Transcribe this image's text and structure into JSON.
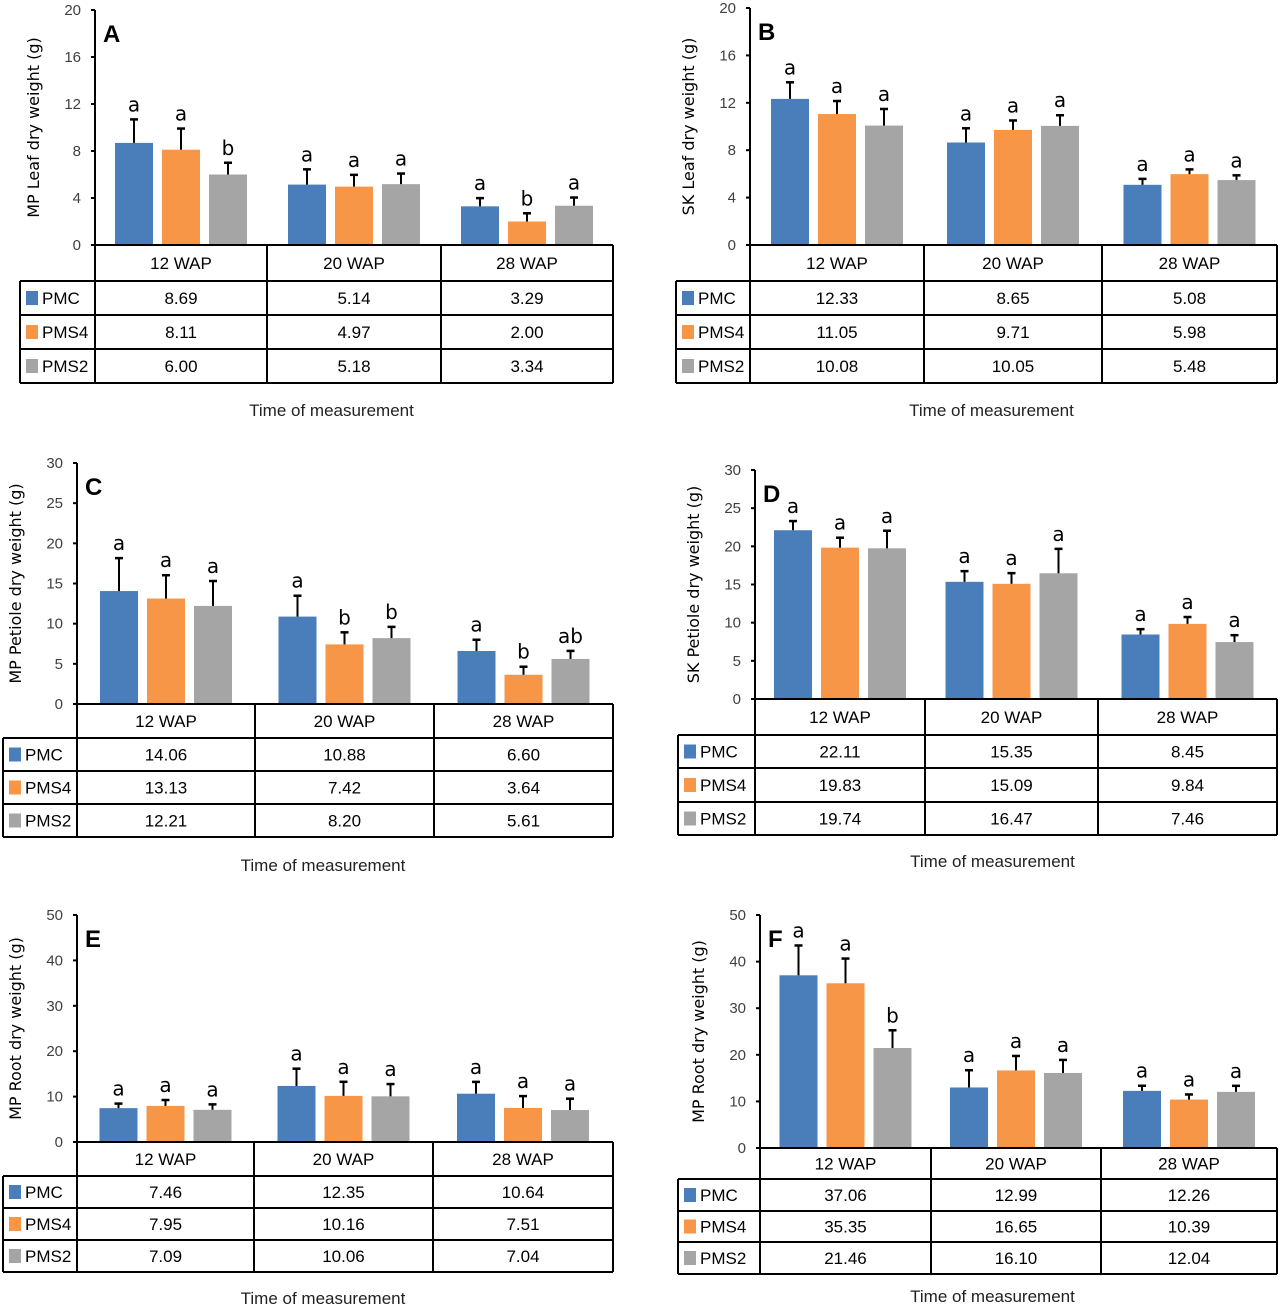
{
  "figure": {
    "xlabel": "Time of measurement",
    "colors": {
      "PMC": "#4a7ebb",
      "PMS4": "#f79646",
      "PMS2": "#a5a5a5"
    }
  },
  "chart_data": [
    {
      "panel": "A",
      "type": "bar",
      "ylabel": "MP Leaf dry weight (g)",
      "xlabel": "Time of measurement",
      "categories": [
        "12 WAP",
        "20 WAP",
        "28 WAP"
      ],
      "ylim": [
        0,
        20
      ],
      "yticks": [
        0,
        4,
        8,
        12,
        16,
        20
      ],
      "series": [
        {
          "name": "PMC",
          "values": [
            8.69,
            5.14,
            3.29
          ],
          "labels": [
            "8.69",
            "5.14",
            "3.29"
          ],
          "errors": [
            2.0,
            1.3,
            0.7
          ],
          "letters": [
            "a",
            "a",
            "a"
          ]
        },
        {
          "name": "PMS4",
          "values": [
            8.11,
            4.97,
            2.0
          ],
          "labels": [
            "8.11",
            "4.97",
            "2.00"
          ],
          "errors": [
            1.8,
            1.0,
            0.7
          ],
          "letters": [
            "a",
            "a",
            "b"
          ]
        },
        {
          "name": "PMS2",
          "values": [
            6.0,
            5.18,
            3.34
          ],
          "labels": [
            "6.00",
            "5.18",
            "3.34"
          ],
          "errors": [
            1.0,
            0.9,
            0.7
          ],
          "letters": [
            "b",
            "a",
            "a"
          ]
        }
      ]
    },
    {
      "panel": "B",
      "type": "bar",
      "ylabel": "SK Leaf dry weight (g)",
      "xlabel": "Time of measurement",
      "categories": [
        "12 WAP",
        "20 WAP",
        "28 WAP"
      ],
      "ylim": [
        0,
        20
      ],
      "yticks": [
        0,
        4,
        8,
        12,
        16,
        20
      ],
      "series": [
        {
          "name": "PMC",
          "values": [
            12.33,
            8.65,
            5.08
          ],
          "labels": [
            "12.33",
            "8.65",
            "5.08"
          ],
          "errors": [
            1.4,
            1.2,
            0.5
          ],
          "letters": [
            "a",
            "a",
            "a"
          ]
        },
        {
          "name": "PMS4",
          "values": [
            11.05,
            9.71,
            5.98
          ],
          "labels": [
            "11.05",
            "9.71",
            "5.98"
          ],
          "errors": [
            1.1,
            0.8,
            0.4
          ],
          "letters": [
            "a",
            "a",
            "a"
          ]
        },
        {
          "name": "PMS2",
          "values": [
            10.08,
            10.05,
            5.48
          ],
          "labels": [
            "10.08",
            "10.05",
            "5.48"
          ],
          "errors": [
            1.4,
            0.9,
            0.4
          ],
          "letters": [
            "a",
            "a",
            "a"
          ]
        }
      ]
    },
    {
      "panel": "C",
      "type": "bar",
      "ylabel": "MP Petiole dry weight (g)",
      "xlabel": "Time of measurement",
      "categories": [
        "12 WAP",
        "20 WAP",
        "28 WAP"
      ],
      "ylim": [
        0,
        30
      ],
      "yticks": [
        0,
        5,
        10,
        15,
        20,
        25,
        30
      ],
      "series": [
        {
          "name": "PMC",
          "values": [
            14.06,
            10.88,
            6.6
          ],
          "labels": [
            "14.06",
            "10.88",
            "6.60"
          ],
          "errors": [
            4.1,
            2.6,
            1.4
          ],
          "letters": [
            "a",
            "a",
            "a"
          ]
        },
        {
          "name": "PMS4",
          "values": [
            13.13,
            7.42,
            3.64
          ],
          "labels": [
            "13.13",
            "7.42",
            "3.64"
          ],
          "errors": [
            2.9,
            1.5,
            1.0
          ],
          "letters": [
            "a",
            "b",
            "b"
          ]
        },
        {
          "name": "PMS2",
          "values": [
            12.21,
            8.2,
            5.61
          ],
          "labels": [
            "12.21",
            "8.20",
            "5.61"
          ],
          "errors": [
            3.1,
            1.4,
            1.0
          ],
          "letters": [
            "a",
            "b",
            "ab"
          ]
        }
      ]
    },
    {
      "panel": "D",
      "type": "bar",
      "ylabel": "SK Petiole dry weight (g)",
      "xlabel": "Time of measurement",
      "categories": [
        "12 WAP",
        "20 WAP",
        "28 WAP"
      ],
      "ylim": [
        0,
        30
      ],
      "yticks": [
        0,
        5,
        10,
        15,
        20,
        25,
        30
      ],
      "series": [
        {
          "name": "PMC",
          "values": [
            22.11,
            15.35,
            8.45
          ],
          "labels": [
            "22.11",
            "15.35",
            "8.45"
          ],
          "errors": [
            1.2,
            1.4,
            0.7
          ],
          "letters": [
            "a",
            "a",
            "a"
          ]
        },
        {
          "name": "PMS4",
          "values": [
            19.83,
            15.09,
            9.84
          ],
          "labels": [
            "19.83",
            "15.09",
            "9.84"
          ],
          "errors": [
            1.3,
            1.4,
            0.9
          ],
          "letters": [
            "a",
            "a",
            "a"
          ]
        },
        {
          "name": "PMS2",
          "values": [
            19.74,
            16.47,
            7.46
          ],
          "labels": [
            "19.74",
            "16.47",
            "7.46"
          ],
          "errors": [
            2.3,
            3.2,
            0.9
          ],
          "letters": [
            "a",
            "a",
            "a"
          ]
        }
      ]
    },
    {
      "panel": "E",
      "type": "bar",
      "ylabel": "MP Root dry weight (g)",
      "xlabel": "Time of measurement",
      "categories": [
        "12 WAP",
        "20 WAP",
        "28 WAP"
      ],
      "ylim": [
        0,
        50
      ],
      "yticks": [
        0,
        10,
        20,
        30,
        40,
        50
      ],
      "series": [
        {
          "name": "PMC",
          "values": [
            7.46,
            12.35,
            10.64
          ],
          "labels": [
            "7.46",
            "12.35",
            "10.64"
          ],
          "errors": [
            1.0,
            3.8,
            2.6
          ],
          "letters": [
            "a",
            "a",
            "a"
          ]
        },
        {
          "name": "PMS4",
          "values": [
            7.95,
            10.16,
            7.51
          ],
          "labels": [
            "7.95",
            "10.16",
            "7.51"
          ],
          "errors": [
            1.3,
            3.1,
            2.6
          ],
          "letters": [
            "a",
            "a",
            "a"
          ]
        },
        {
          "name": "PMS2",
          "values": [
            7.09,
            10.06,
            7.04
          ],
          "labels": [
            "7.09",
            "10.06",
            "7.04"
          ],
          "errors": [
            1.2,
            2.7,
            2.5
          ],
          "letters": [
            "a",
            "a",
            "a"
          ]
        }
      ]
    },
    {
      "panel": "F",
      "type": "bar",
      "ylabel": "MP Root dry weight (g)",
      "xlabel": "Time of measurement",
      "categories": [
        "12 WAP",
        "20 WAP",
        "28 WAP"
      ],
      "ylim": [
        0,
        50
      ],
      "yticks": [
        0,
        10,
        20,
        30,
        40,
        50
      ],
      "series": [
        {
          "name": "PMC",
          "values": [
            37.06,
            12.99,
            12.26
          ],
          "labels": [
            "37.06",
            "12.99",
            "12.26"
          ],
          "errors": [
            6.4,
            3.7,
            1.1
          ],
          "letters": [
            "a",
            "a",
            "a"
          ]
        },
        {
          "name": "PMS4",
          "values": [
            35.35,
            16.65,
            10.39
          ],
          "labels": [
            "35.35",
            "16.65",
            "10.39"
          ],
          "errors": [
            5.3,
            3.1,
            1.1
          ],
          "letters": [
            "a",
            "a",
            "a"
          ]
        },
        {
          "name": "PMS2",
          "values": [
            21.46,
            16.1,
            12.04
          ],
          "labels": [
            "21.46",
            "16.10",
            "12.04"
          ],
          "errors": [
            3.8,
            2.8,
            1.3
          ],
          "letters": [
            "b",
            "a",
            "a"
          ]
        }
      ]
    }
  ]
}
